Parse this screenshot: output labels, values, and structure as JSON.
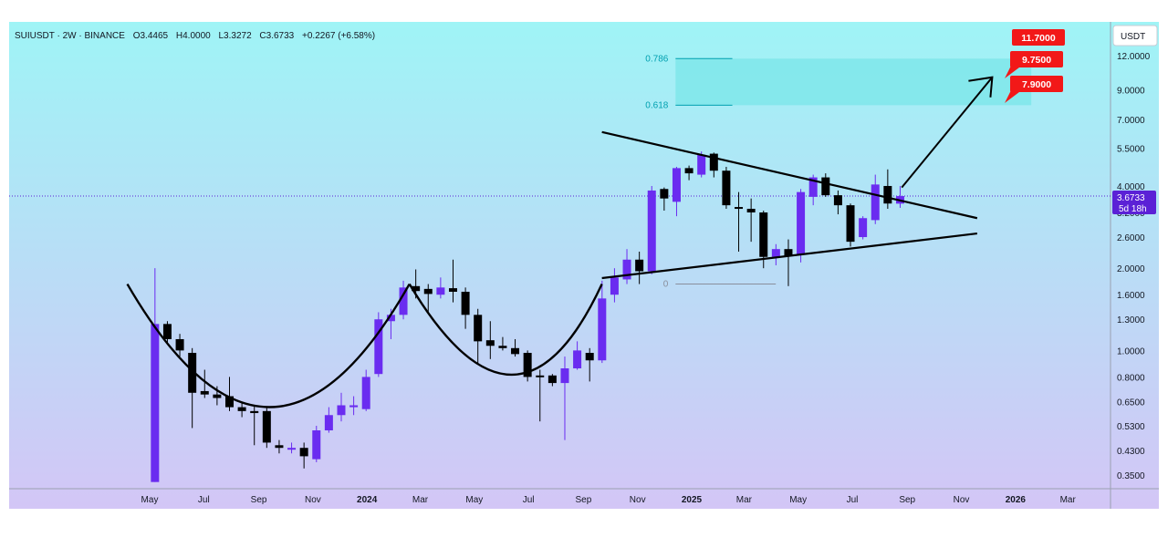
{
  "header": {
    "symbol": "SUIUSDT · 2W · BINANCE",
    "o_label": "O",
    "o_value": "3.4465",
    "h_label": "H",
    "h_value": "4.0000",
    "l_label": "L",
    "l_value": "3.3272",
    "c_label": "C",
    "c_value": "3.6733",
    "change": "+0.2267 (+6.58%)"
  },
  "axis": {
    "currency": "USDT",
    "y_ticks": [
      "12.0000",
      "9.0000",
      "7.0000",
      "5.5000",
      "4.0000",
      "3.2000",
      "2.6000",
      "2.0000",
      "1.6000",
      "1.3000",
      "1.0000",
      "0.8000",
      "0.6500",
      "0.5300",
      "0.4300",
      "0.3500"
    ],
    "x_ticks": [
      {
        "label": "May",
        "bold": false
      },
      {
        "label": "Jul",
        "bold": false
      },
      {
        "label": "Sep",
        "bold": false
      },
      {
        "label": "Nov",
        "bold": false
      },
      {
        "label": "2024",
        "bold": true
      },
      {
        "label": "Mar",
        "bold": false
      },
      {
        "label": "May",
        "bold": false
      },
      {
        "label": "Jul",
        "bold": false
      },
      {
        "label": "Sep",
        "bold": false
      },
      {
        "label": "Nov",
        "bold": false
      },
      {
        "label": "2025",
        "bold": true
      },
      {
        "label": "Mar",
        "bold": false
      },
      {
        "label": "May",
        "bold": false
      },
      {
        "label": "Jul",
        "bold": false
      },
      {
        "label": "Sep",
        "bold": false
      },
      {
        "label": "Nov",
        "bold": false
      },
      {
        "label": "2026",
        "bold": true
      },
      {
        "label": "Mar",
        "bold": false
      }
    ]
  },
  "price_label": {
    "value": "3.6733",
    "countdown": "5d 18h"
  },
  "fib": {
    "level_1": "0.786",
    "level_2": "0.618",
    "level_0": "0"
  },
  "targets": [
    "11.7000",
    "9.7500",
    "7.9000"
  ],
  "colors": {
    "bg_top": "#9ff4f6",
    "bg_bottom": "#d3c6f6",
    "up": "#6a2cf0",
    "down": "#000000",
    "target": "#f21818",
    "fib": "#00a0b0",
    "fib_zone": "#7fe6ea",
    "price_tag": "#5b21d6"
  },
  "chart_data": {
    "type": "candlestick",
    "scale": "log",
    "ylim": [
      0.33,
      13.5
    ],
    "annotations": [
      "cup and handle",
      "symmetrical triangle",
      "breakout arrow"
    ],
    "candles": [
      {
        "date": "2023-05-07",
        "o": 0.33,
        "h": 2.0,
        "l": 0.33,
        "c": 1.25
      },
      {
        "date": "2023-05-21",
        "o": 1.25,
        "h": 1.28,
        "l": 1.05,
        "c": 1.1
      },
      {
        "date": "2023-06-04",
        "o": 1.1,
        "h": 1.15,
        "l": 0.95,
        "c": 1.0
      },
      {
        "date": "2023-06-18",
        "o": 0.98,
        "h": 1.02,
        "l": 0.52,
        "c": 0.7
      },
      {
        "date": "2023-07-02",
        "o": 0.71,
        "h": 0.85,
        "l": 0.67,
        "c": 0.69
      },
      {
        "date": "2023-07-16",
        "o": 0.69,
        "h": 0.74,
        "l": 0.63,
        "c": 0.67
      },
      {
        "date": "2023-07-30",
        "o": 0.68,
        "h": 0.8,
        "l": 0.6,
        "c": 0.62
      },
      {
        "date": "2023-08-13",
        "o": 0.62,
        "h": 0.64,
        "l": 0.57,
        "c": 0.6
      },
      {
        "date": "2023-08-27",
        "o": 0.6,
        "h": 0.63,
        "l": 0.45,
        "c": 0.59
      },
      {
        "date": "2023-09-10",
        "o": 0.6,
        "h": 0.62,
        "l": 0.44,
        "c": 0.46
      },
      {
        "date": "2023-09-24",
        "o": 0.45,
        "h": 0.47,
        "l": 0.42,
        "c": 0.44
      },
      {
        "date": "2023-10-08",
        "o": 0.44,
        "h": 0.46,
        "l": 0.42,
        "c": 0.44
      },
      {
        "date": "2023-10-22",
        "o": 0.44,
        "h": 0.46,
        "l": 0.37,
        "c": 0.41
      },
      {
        "date": "2023-11-05",
        "o": 0.4,
        "h": 0.53,
        "l": 0.39,
        "c": 0.51
      },
      {
        "date": "2023-11-19",
        "o": 0.51,
        "h": 0.62,
        "l": 0.5,
        "c": 0.58
      },
      {
        "date": "2023-12-03",
        "o": 0.58,
        "h": 0.7,
        "l": 0.55,
        "c": 0.63
      },
      {
        "date": "2023-12-17",
        "o": 0.62,
        "h": 0.68,
        "l": 0.58,
        "c": 0.63
      },
      {
        "date": "2023-12-31",
        "o": 0.61,
        "h": 0.85,
        "l": 0.6,
        "c": 0.8
      },
      {
        "date": "2024-01-14",
        "o": 0.82,
        "h": 1.38,
        "l": 0.8,
        "c": 1.3
      },
      {
        "date": "2024-01-28",
        "o": 1.28,
        "h": 1.42,
        "l": 1.1,
        "c": 1.35
      },
      {
        "date": "2024-02-11",
        "o": 1.35,
        "h": 1.8,
        "l": 1.3,
        "c": 1.7
      },
      {
        "date": "2024-02-25",
        "o": 1.72,
        "h": 1.98,
        "l": 1.55,
        "c": 1.65
      },
      {
        "date": "2024-03-10",
        "o": 1.68,
        "h": 1.75,
        "l": 1.38,
        "c": 1.61
      },
      {
        "date": "2024-03-24",
        "o": 1.6,
        "h": 1.85,
        "l": 1.55,
        "c": 1.7
      },
      {
        "date": "2024-04-07",
        "o": 1.69,
        "h": 2.15,
        "l": 1.5,
        "c": 1.64
      },
      {
        "date": "2024-04-21",
        "o": 1.64,
        "h": 1.7,
        "l": 1.2,
        "c": 1.35
      },
      {
        "date": "2024-05-05",
        "o": 1.35,
        "h": 1.42,
        "l": 0.9,
        "c": 1.08
      },
      {
        "date": "2024-05-19",
        "o": 1.09,
        "h": 1.28,
        "l": 0.93,
        "c": 1.04
      },
      {
        "date": "2024-06-02",
        "o": 1.04,
        "h": 1.12,
        "l": 1.0,
        "c": 1.02
      },
      {
        "date": "2024-06-16",
        "o": 1.02,
        "h": 1.1,
        "l": 0.95,
        "c": 0.97
      },
      {
        "date": "2024-06-30",
        "o": 0.98,
        "h": 1.0,
        "l": 0.77,
        "c": 0.8
      },
      {
        "date": "2024-07-14",
        "o": 0.81,
        "h": 0.85,
        "l": 0.55,
        "c": 0.8
      },
      {
        "date": "2024-07-28",
        "o": 0.81,
        "h": 0.82,
        "l": 0.74,
        "c": 0.76
      },
      {
        "date": "2024-08-11",
        "o": 0.76,
        "h": 0.95,
        "l": 0.47,
        "c": 0.86
      },
      {
        "date": "2024-08-25",
        "o": 0.86,
        "h": 1.08,
        "l": 0.85,
        "c": 1.0
      },
      {
        "date": "2024-09-08",
        "o": 0.98,
        "h": 1.02,
        "l": 0.77,
        "c": 0.92
      },
      {
        "date": "2024-09-22",
        "o": 0.92,
        "h": 1.8,
        "l": 0.9,
        "c": 1.55
      },
      {
        "date": "2024-10-06",
        "o": 1.6,
        "h": 2.0,
        "l": 1.5,
        "c": 1.85
      },
      {
        "date": "2024-10-20",
        "o": 1.82,
        "h": 2.35,
        "l": 1.75,
        "c": 2.15
      },
      {
        "date": "2024-11-03",
        "o": 2.15,
        "h": 2.3,
        "l": 1.75,
        "c": 1.95
      },
      {
        "date": "2024-11-17",
        "o": 1.95,
        "h": 4.0,
        "l": 1.9,
        "c": 3.85
      },
      {
        "date": "2024-12-01",
        "o": 3.9,
        "h": 3.95,
        "l": 3.25,
        "c": 3.6
      },
      {
        "date": "2024-12-15",
        "o": 3.5,
        "h": 4.7,
        "l": 3.1,
        "c": 4.65
      },
      {
        "date": "2024-12-29",
        "o": 4.65,
        "h": 4.75,
        "l": 4.2,
        "c": 4.45
      },
      {
        "date": "2025-01-12",
        "o": 4.4,
        "h": 5.35,
        "l": 4.3,
        "c": 5.2
      },
      {
        "date": "2025-01-26",
        "o": 5.25,
        "h": 5.3,
        "l": 4.3,
        "c": 4.55
      },
      {
        "date": "2025-02-09",
        "o": 4.55,
        "h": 4.7,
        "l": 3.3,
        "c": 3.4
      },
      {
        "date": "2025-02-23",
        "o": 3.35,
        "h": 3.8,
        "l": 2.3,
        "c": 3.3
      },
      {
        "date": "2025-03-09",
        "o": 3.3,
        "h": 3.6,
        "l": 2.5,
        "c": 3.2
      },
      {
        "date": "2025-03-23",
        "o": 3.2,
        "h": 3.25,
        "l": 2.0,
        "c": 2.2
      },
      {
        "date": "2025-04-06",
        "o": 2.2,
        "h": 2.45,
        "l": 2.05,
        "c": 2.35
      },
      {
        "date": "2025-04-20",
        "o": 2.35,
        "h": 2.55,
        "l": 1.72,
        "c": 2.22
      },
      {
        "date": "2025-05-04",
        "o": 2.25,
        "h": 3.9,
        "l": 2.1,
        "c": 3.8
      },
      {
        "date": "2025-05-18",
        "o": 3.65,
        "h": 4.4,
        "l": 3.4,
        "c": 4.3
      },
      {
        "date": "2025-06-01",
        "o": 4.3,
        "h": 4.45,
        "l": 3.65,
        "c": 3.7
      },
      {
        "date": "2025-06-15",
        "o": 3.7,
        "h": 3.85,
        "l": 3.15,
        "c": 3.4
      },
      {
        "date": "2025-06-29",
        "o": 3.4,
        "h": 3.45,
        "l": 2.4,
        "c": 2.5
      },
      {
        "date": "2025-07-13",
        "o": 2.6,
        "h": 3.1,
        "l": 2.55,
        "c": 3.05
      },
      {
        "date": "2025-07-27",
        "o": 3.0,
        "h": 4.4,
        "l": 2.9,
        "c": 4.05
      },
      {
        "date": "2025-08-10",
        "o": 4.0,
        "h": 4.6,
        "l": 3.3,
        "c": 3.45
      },
      {
        "date": "2025-08-24",
        "o": 3.4465,
        "h": 4.0,
        "l": 3.3272,
        "c": 3.6733
      }
    ]
  }
}
